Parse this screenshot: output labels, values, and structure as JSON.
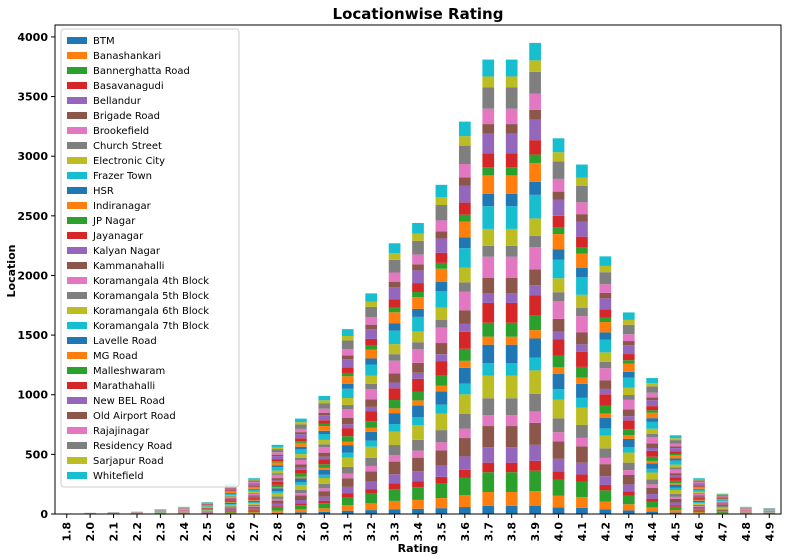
{
  "chart_data": {
    "type": "bar",
    "stacked": true,
    "title": "Locationwise Rating",
    "xlabel": "Rating",
    "ylabel": "Location",
    "ylim": [
      0,
      4100
    ],
    "yticks": [
      0,
      500,
      1000,
      1500,
      2000,
      2500,
      3000,
      3500,
      4000
    ],
    "grid": false,
    "legend_position": "top-left",
    "categories": [
      "1.8",
      "2.0",
      "2.1",
      "2.2",
      "2.3",
      "2.4",
      "2.5",
      "2.6",
      "2.7",
      "2.8",
      "2.9",
      "3.0",
      "3.1",
      "3.2",
      "3.3",
      "3.4",
      "3.5",
      "3.6",
      "3.7",
      "3.8",
      "3.9",
      "4.0",
      "4.1",
      "4.2",
      "4.3",
      "4.4",
      "4.5",
      "4.6",
      "4.7",
      "4.8",
      "4.9"
    ],
    "totals": [
      5,
      10,
      15,
      20,
      40,
      60,
      100,
      250,
      300,
      580,
      800,
      990,
      1550,
      1850,
      2270,
      2440,
      2760,
      3290,
      3810,
      3810,
      3950,
      3150,
      2930,
      2160,
      1690,
      1140,
      660,
      300,
      170,
      60,
      50
    ],
    "series": [
      {
        "name": "BTM",
        "color": "#1f77b4"
      },
      {
        "name": "Banashankari",
        "color": "#ff7f0e"
      },
      {
        "name": "Bannerghatta Road",
        "color": "#2ca02c"
      },
      {
        "name": "Basavanagudi",
        "color": "#d62728"
      },
      {
        "name": "Bellandur",
        "color": "#9467bd"
      },
      {
        "name": "Brigade Road",
        "color": "#8c564b"
      },
      {
        "name": "Brookefield",
        "color": "#e377c2"
      },
      {
        "name": "Church Street",
        "color": "#7f7f7f"
      },
      {
        "name": "Electronic City",
        "color": "#bcbd22"
      },
      {
        "name": "Frazer Town",
        "color": "#17becf"
      },
      {
        "name": "HSR",
        "color": "#1f77b4"
      },
      {
        "name": "Indiranagar",
        "color": "#ff7f0e"
      },
      {
        "name": "JP Nagar",
        "color": "#2ca02c"
      },
      {
        "name": "Jayanagar",
        "color": "#d62728"
      },
      {
        "name": "Kalyan Nagar",
        "color": "#9467bd"
      },
      {
        "name": "Kammanahalli",
        "color": "#8c564b"
      },
      {
        "name": "Koramangala 4th Block",
        "color": "#e377c2"
      },
      {
        "name": "Koramangala 5th Block",
        "color": "#7f7f7f"
      },
      {
        "name": "Koramangala 6th Block",
        "color": "#bcbd22"
      },
      {
        "name": "Koramangala 7th Block",
        "color": "#17becf"
      },
      {
        "name": "Lavelle Road",
        "color": "#1f77b4"
      },
      {
        "name": "MG Road",
        "color": "#ff7f0e"
      },
      {
        "name": "Malleshwaram",
        "color": "#2ca02c"
      },
      {
        "name": "Marathahalli",
        "color": "#d62728"
      },
      {
        "name": "New BEL Road",
        "color": "#9467bd"
      },
      {
        "name": "Old Airport Road",
        "color": "#8c564b"
      },
      {
        "name": "Rajajinagar",
        "color": "#e377c2"
      },
      {
        "name": "Residency Road",
        "color": "#7f7f7f"
      },
      {
        "name": "Sarjapur Road",
        "color": "#bcbd22"
      },
      {
        "name": "Whitefield",
        "color": "#17becf"
      }
    ]
  }
}
